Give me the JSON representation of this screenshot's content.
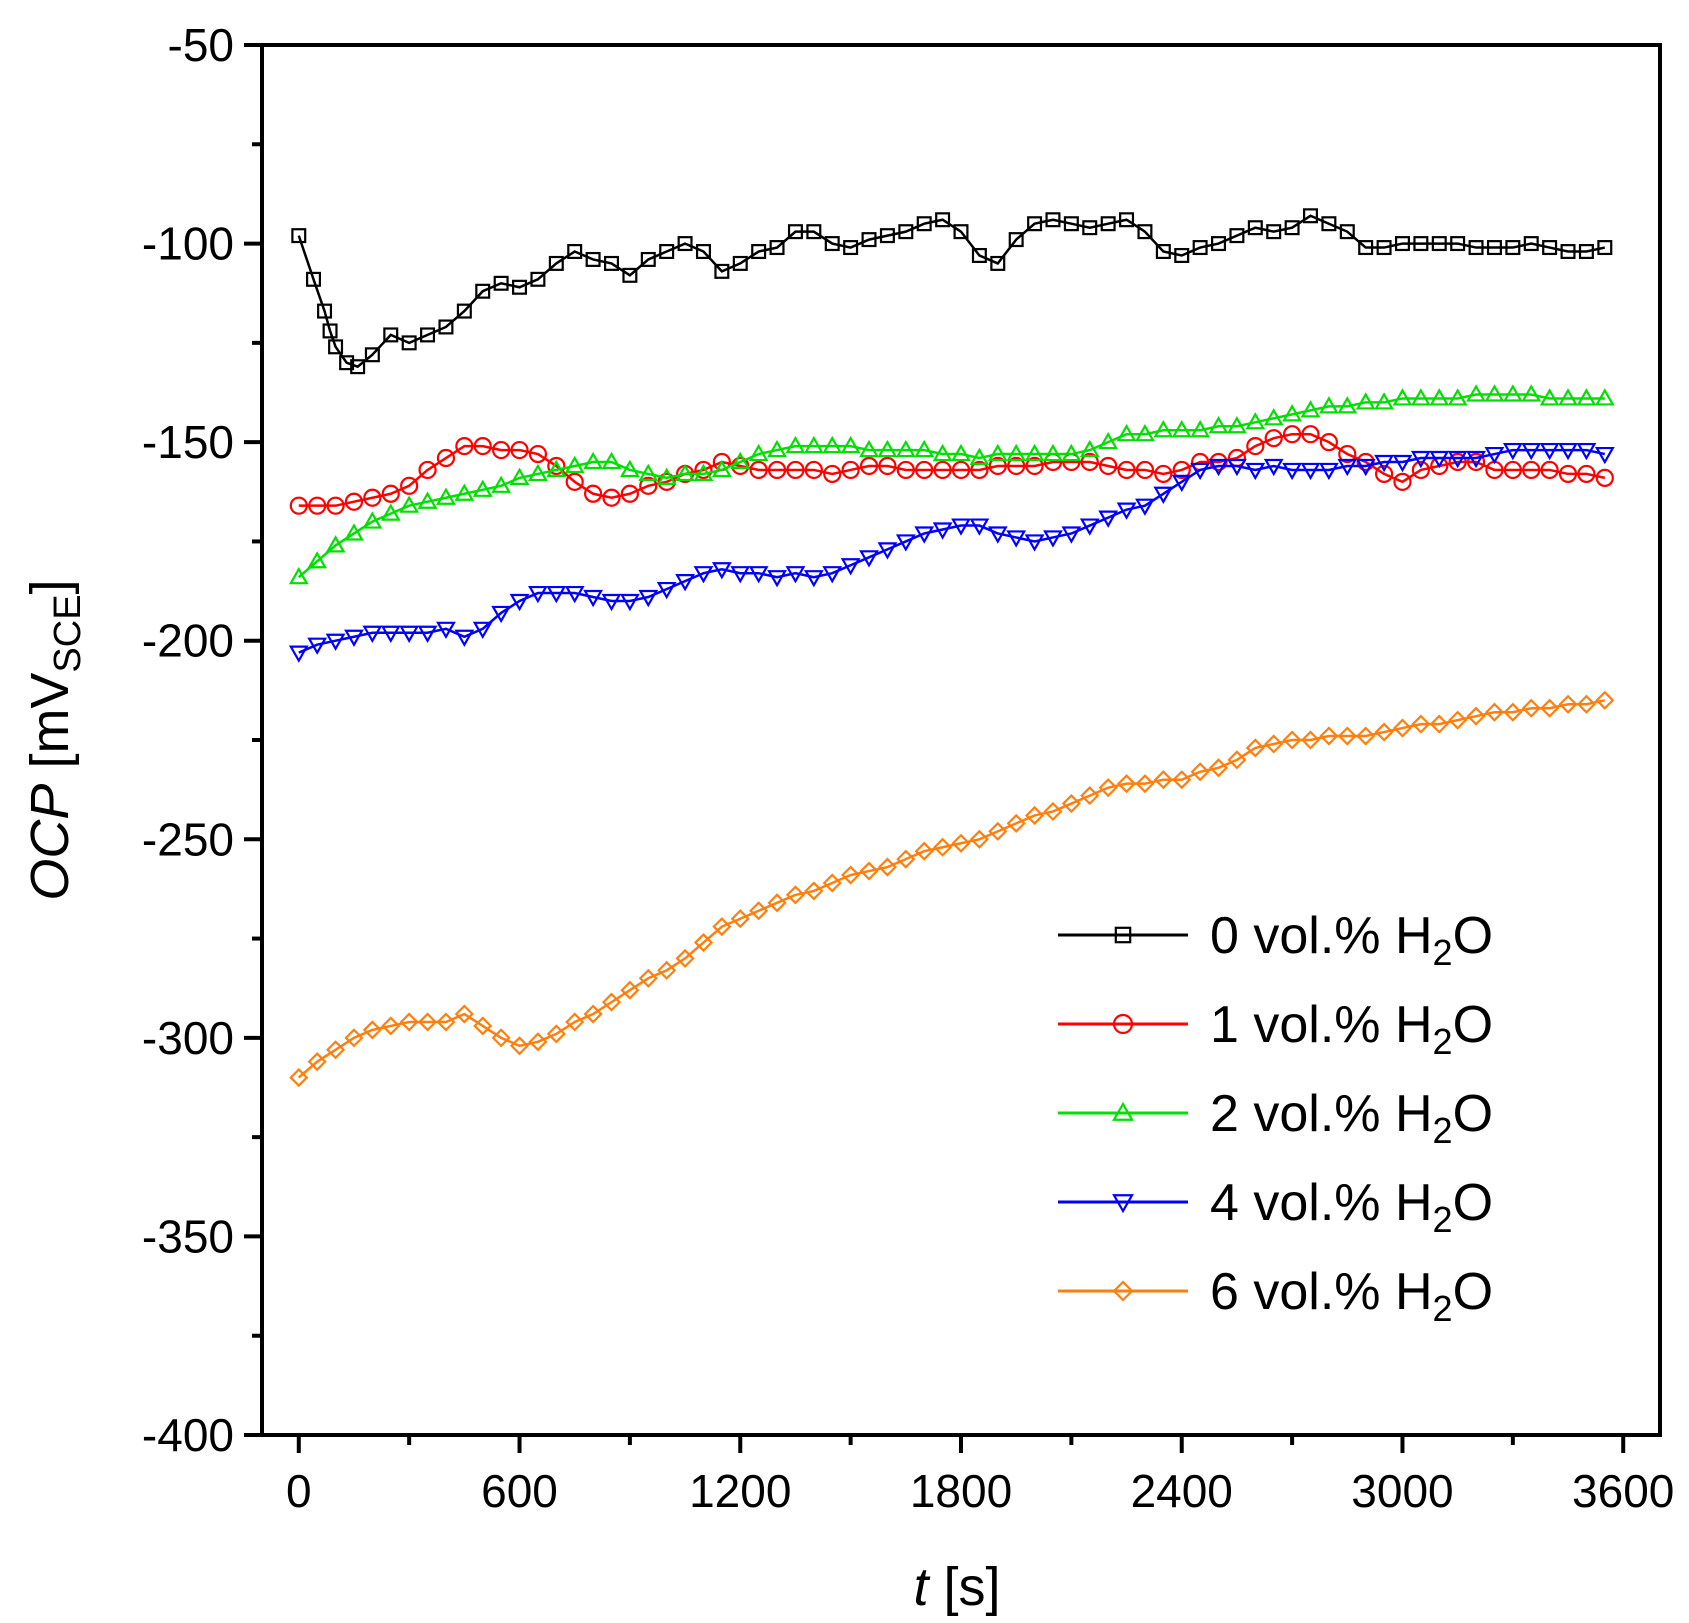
{
  "chart_data": {
    "type": "scatter",
    "xlabel": {
      "italic": "t",
      "rest": " [s]"
    },
    "ylabel": {
      "italic": "OCP",
      "rest": " [mV",
      "subscript": "SCE",
      "close": "]"
    },
    "xlim": [
      -100,
      3700
    ],
    "ylim": [
      -400,
      -50
    ],
    "xticks": [
      0,
      600,
      1200,
      1800,
      2400,
      3000,
      3600
    ],
    "yticks": [
      -400,
      -350,
      -300,
      -250,
      -200,
      -150,
      -100,
      -50
    ],
    "xtick_labels": [
      "0",
      "600",
      "1200",
      "1800",
      "2400",
      "3000",
      "3600"
    ],
    "ytick_labels": [
      "-400",
      "-350",
      "-300",
      "-250",
      "-200",
      "-150",
      "-100",
      "-50"
    ],
    "legend_position": "bottom-right",
    "series": [
      {
        "name": "0 vol.% H2O",
        "label_prefix": "0 vol.% H",
        "label_sub": "2",
        "label_suffix": "O",
        "color": "#000000",
        "marker": "square",
        "x": [
          0,
          40,
          70,
          85,
          100,
          130,
          160,
          200,
          250,
          300,
          350,
          400,
          450,
          500,
          550,
          600,
          650,
          700,
          750,
          800,
          850,
          900,
          950,
          1000,
          1050,
          1100,
          1150,
          1200,
          1250,
          1300,
          1350,
          1400,
          1450,
          1500,
          1550,
          1600,
          1650,
          1700,
          1750,
          1800,
          1850,
          1900,
          1950,
          2000,
          2050,
          2100,
          2150,
          2200,
          2250,
          2300,
          2350,
          2400,
          2450,
          2500,
          2550,
          2600,
          2650,
          2700,
          2750,
          2800,
          2850,
          2900,
          2950,
          3000,
          3050,
          3100,
          3150,
          3200,
          3250,
          3300,
          3350,
          3400,
          3450,
          3500,
          3550
        ],
        "y": [
          -98,
          -109,
          -117,
          -122,
          -126,
          -130,
          -131,
          -128,
          -123,
          -125,
          -123,
          -121,
          -117,
          -112,
          -110,
          -111,
          -109,
          -105,
          -102,
          -104,
          -105,
          -108,
          -104,
          -102,
          -100,
          -102,
          -107,
          -105,
          -102,
          -101,
          -97,
          -97,
          -100,
          -101,
          -99,
          -98,
          -97,
          -95,
          -94,
          -97,
          -103,
          -105,
          -99,
          -95,
          -94,
          -95,
          -96,
          -95,
          -94,
          -97,
          -102,
          -103,
          -101,
          -100,
          -98,
          -96,
          -97,
          -96,
          -93,
          -95,
          -97,
          -101,
          -101,
          -100,
          -100,
          -100,
          -100,
          -101,
          -101,
          -101,
          -100,
          -101,
          -102,
          -102,
          -101
        ]
      },
      {
        "name": "1 vol.% H2O",
        "label_prefix": "1 vol.% H",
        "label_sub": "2",
        "label_suffix": "O",
        "color": "#ff0000",
        "marker": "circle",
        "x": [
          0,
          50,
          100,
          150,
          200,
          250,
          300,
          350,
          400,
          450,
          500,
          550,
          600,
          650,
          700,
          750,
          800,
          850,
          900,
          950,
          1000,
          1050,
          1100,
          1150,
          1200,
          1250,
          1300,
          1350,
          1400,
          1450,
          1500,
          1550,
          1600,
          1650,
          1700,
          1750,
          1800,
          1850,
          1900,
          1950,
          2000,
          2050,
          2100,
          2150,
          2200,
          2250,
          2300,
          2350,
          2400,
          2450,
          2500,
          2550,
          2600,
          2650,
          2700,
          2750,
          2800,
          2850,
          2900,
          2950,
          3000,
          3050,
          3100,
          3150,
          3200,
          3250,
          3300,
          3350,
          3400,
          3450,
          3500,
          3550
        ],
        "y": [
          -166,
          -166,
          -166,
          -165,
          -164,
          -163,
          -161,
          -157,
          -154,
          -151,
          -151,
          -152,
          -152,
          -153,
          -156,
          -160,
          -163,
          -164,
          -163,
          -161,
          -160,
          -158,
          -157,
          -155,
          -156,
          -157,
          -157,
          -157,
          -157,
          -158,
          -157,
          -156,
          -156,
          -157,
          -157,
          -157,
          -157,
          -157,
          -156,
          -156,
          -156,
          -155,
          -155,
          -155,
          -156,
          -157,
          -157,
          -158,
          -157,
          -155,
          -155,
          -154,
          -151,
          -149,
          -148,
          -148,
          -150,
          -153,
          -155,
          -158,
          -160,
          -157,
          -156,
          -155,
          -155,
          -157,
          -157,
          -157,
          -157,
          -158,
          -158,
          -159
        ]
      },
      {
        "name": "2 vol.% H2O",
        "label_prefix": "2 vol.% H",
        "label_sub": "2",
        "label_suffix": "O",
        "color": "#00e000",
        "marker": "triangle-up",
        "x": [
          0,
          50,
          100,
          150,
          200,
          250,
          300,
          350,
          400,
          450,
          500,
          550,
          600,
          650,
          700,
          750,
          800,
          850,
          900,
          950,
          1000,
          1050,
          1100,
          1150,
          1200,
          1250,
          1300,
          1350,
          1400,
          1450,
          1500,
          1550,
          1600,
          1650,
          1700,
          1750,
          1800,
          1850,
          1900,
          1950,
          2000,
          2050,
          2100,
          2150,
          2200,
          2250,
          2300,
          2350,
          2400,
          2450,
          2500,
          2550,
          2600,
          2650,
          2700,
          2750,
          2800,
          2850,
          2900,
          2950,
          3000,
          3050,
          3100,
          3150,
          3200,
          3250,
          3300,
          3350,
          3400,
          3450,
          3500,
          3550
        ],
        "y": [
          -184,
          -180,
          -176,
          -173,
          -170,
          -168,
          -166,
          -165,
          -164,
          -163,
          -162,
          -161,
          -159,
          -158,
          -157,
          -156,
          -155,
          -155,
          -157,
          -158,
          -159,
          -158,
          -158,
          -157,
          -155,
          -153,
          -152,
          -151,
          -151,
          -151,
          -151,
          -152,
          -152,
          -152,
          -152,
          -153,
          -153,
          -154,
          -153,
          -153,
          -153,
          -153,
          -153,
          -152,
          -150,
          -148,
          -148,
          -147,
          -147,
          -147,
          -146,
          -146,
          -145,
          -144,
          -143,
          -142,
          -141,
          -141,
          -140,
          -140,
          -139,
          -139,
          -139,
          -139,
          -138,
          -138,
          -138,
          -138,
          -139,
          -139,
          -139,
          -139
        ]
      },
      {
        "name": "4 vol.% H2O",
        "label_prefix": "4 vol.% H",
        "label_sub": "2",
        "label_suffix": "O",
        "color": "#0000ff",
        "marker": "triangle-down",
        "x": [
          0,
          50,
          100,
          150,
          200,
          250,
          300,
          350,
          400,
          450,
          500,
          550,
          600,
          650,
          700,
          750,
          800,
          850,
          900,
          950,
          1000,
          1050,
          1100,
          1150,
          1200,
          1250,
          1300,
          1350,
          1400,
          1450,
          1500,
          1550,
          1600,
          1650,
          1700,
          1750,
          1800,
          1850,
          1900,
          1950,
          2000,
          2050,
          2100,
          2150,
          2200,
          2250,
          2300,
          2350,
          2400,
          2450,
          2500,
          2550,
          2600,
          2650,
          2700,
          2750,
          2800,
          2850,
          2900,
          2950,
          3000,
          3050,
          3100,
          3150,
          3200,
          3250,
          3300,
          3350,
          3400,
          3450,
          3500,
          3550
        ],
        "y": [
          -203,
          -201,
          -200,
          -199,
          -198,
          -198,
          -198,
          -198,
          -197,
          -199,
          -197,
          -193,
          -190,
          -188,
          -188,
          -188,
          -189,
          -190,
          -190,
          -189,
          -187,
          -185,
          -183,
          -182,
          -183,
          -183,
          -184,
          -183,
          -184,
          -183,
          -181,
          -179,
          -177,
          -175,
          -173,
          -172,
          -171,
          -171,
          -173,
          -174,
          -175,
          -174,
          -173,
          -171,
          -169,
          -167,
          -166,
          -163,
          -160,
          -157,
          -156,
          -156,
          -157,
          -156,
          -157,
          -157,
          -157,
          -156,
          -156,
          -155,
          -155,
          -154,
          -154,
          -154,
          -154,
          -153,
          -152,
          -152,
          -152,
          -152,
          -152,
          -153
        ]
      },
      {
        "name": "6 vol.% H2O",
        "label_prefix": "6 vol.% H",
        "label_sub": "2",
        "label_suffix": "O",
        "color": "#ff7f0e",
        "marker": "diamond",
        "x": [
          0,
          50,
          100,
          150,
          200,
          250,
          300,
          350,
          400,
          450,
          500,
          550,
          600,
          650,
          700,
          750,
          800,
          850,
          900,
          950,
          1000,
          1050,
          1100,
          1150,
          1200,
          1250,
          1300,
          1350,
          1400,
          1450,
          1500,
          1550,
          1600,
          1650,
          1700,
          1750,
          1800,
          1850,
          1900,
          1950,
          2000,
          2050,
          2100,
          2150,
          2200,
          2250,
          2300,
          2350,
          2400,
          2450,
          2500,
          2550,
          2600,
          2650,
          2700,
          2750,
          2800,
          2850,
          2900,
          2950,
          3000,
          3050,
          3100,
          3150,
          3200,
          3250,
          3300,
          3350,
          3400,
          3450,
          3500,
          3550
        ],
        "y": [
          -310,
          -306,
          -303,
          -300,
          -298,
          -297,
          -296,
          -296,
          -296,
          -294,
          -297,
          -300,
          -302,
          -301,
          -299,
          -296,
          -294,
          -291,
          -288,
          -285,
          -283,
          -280,
          -276,
          -272,
          -270,
          -268,
          -266,
          -264,
          -263,
          -261,
          -259,
          -258,
          -257,
          -255,
          -253,
          -252,
          -251,
          -250,
          -248,
          -246,
          -244,
          -243,
          -241,
          -239,
          -237,
          -236,
          -236,
          -235,
          -235,
          -233,
          -232,
          -230,
          -227,
          -226,
          -225,
          -225,
          -224,
          -224,
          -224,
          -223,
          -222,
          -221,
          -221,
          -220,
          -219,
          -218,
          -218,
          -217,
          -217,
          -216,
          -216,
          -215
        ]
      }
    ]
  }
}
